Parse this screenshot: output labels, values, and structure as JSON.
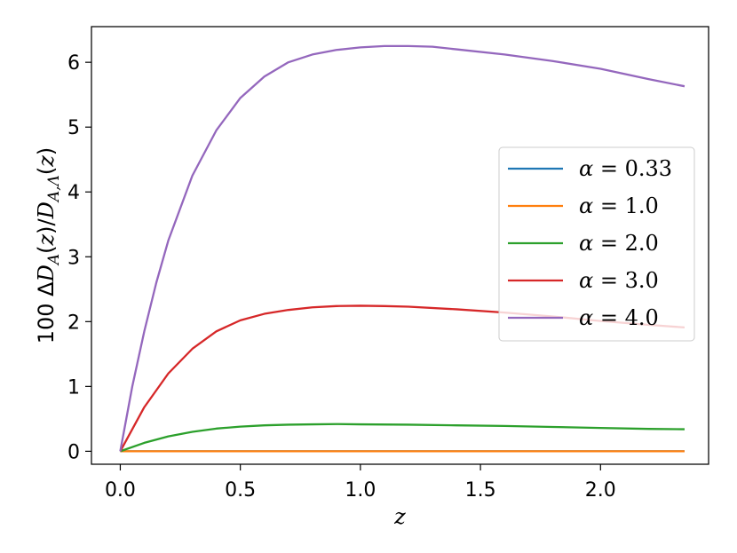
{
  "chart_data": {
    "type": "line",
    "title": "",
    "xlabel": "z",
    "ylabel": "100 ΔD_A(z)/D_A,Λ(z)",
    "xlim": [
      -0.12,
      2.45
    ],
    "ylim": [
      -0.2,
      6.55
    ],
    "xticks": [
      0.0,
      0.5,
      1.0,
      1.5,
      2.0
    ],
    "xtick_labels": [
      "0.0",
      "0.5",
      "1.0",
      "1.5",
      "2.0"
    ],
    "yticks": [
      0,
      1,
      2,
      3,
      4,
      5,
      6
    ],
    "ytick_labels": [
      "0",
      "1",
      "2",
      "3",
      "4",
      "5",
      "6"
    ],
    "grid": false,
    "legend_position": "center-right",
    "series": [
      {
        "name": "α = 0.33",
        "color": "#1f77b4",
        "x": [
          0,
          0.1,
          0.2,
          0.3,
          0.4,
          0.5,
          0.6,
          0.7,
          0.8,
          0.9,
          1.0,
          1.2,
          1.4,
          1.6,
          1.8,
          2.0,
          2.2,
          2.35
        ],
        "y": [
          0,
          0,
          0,
          0,
          0,
          0,
          0,
          0,
          0,
          0,
          0,
          0,
          0,
          0,
          0,
          0,
          0,
          0
        ]
      },
      {
        "name": "α = 1.0",
        "color": "#ff7f0e",
        "x": [
          0,
          0.1,
          0.2,
          0.3,
          0.4,
          0.5,
          0.6,
          0.7,
          0.8,
          0.9,
          1.0,
          1.2,
          1.4,
          1.6,
          1.8,
          2.0,
          2.2,
          2.35
        ],
        "y": [
          0,
          0,
          0,
          0,
          0,
          0,
          0,
          0,
          0,
          0,
          0,
          0,
          0,
          0,
          0,
          0,
          0,
          0
        ]
      },
      {
        "name": "α = 2.0",
        "color": "#2ca02c",
        "x": [
          0,
          0.1,
          0.2,
          0.3,
          0.4,
          0.5,
          0.6,
          0.7,
          0.8,
          0.9,
          1.0,
          1.2,
          1.4,
          1.6,
          1.8,
          2.0,
          2.2,
          2.35
        ],
        "y": [
          0,
          0.13,
          0.23,
          0.3,
          0.35,
          0.38,
          0.4,
          0.41,
          0.415,
          0.42,
          0.415,
          0.41,
          0.4,
          0.39,
          0.375,
          0.36,
          0.345,
          0.34
        ]
      },
      {
        "name": "α = 3.0",
        "color": "#d62728",
        "x": [
          0,
          0.1,
          0.2,
          0.3,
          0.4,
          0.5,
          0.6,
          0.7,
          0.8,
          0.9,
          1.0,
          1.1,
          1.2,
          1.4,
          1.6,
          1.8,
          2.0,
          2.2,
          2.35
        ],
        "y": [
          0,
          0.68,
          1.2,
          1.58,
          1.85,
          2.02,
          2.12,
          2.18,
          2.22,
          2.24,
          2.245,
          2.24,
          2.23,
          2.19,
          2.14,
          2.08,
          2.01,
          1.95,
          1.91
        ]
      },
      {
        "name": "α = 4.0",
        "color": "#9467bd",
        "x": [
          0,
          0.05,
          0.1,
          0.15,
          0.2,
          0.3,
          0.4,
          0.5,
          0.6,
          0.7,
          0.8,
          0.9,
          1.0,
          1.1,
          1.2,
          1.3,
          1.4,
          1.6,
          1.8,
          2.0,
          2.2,
          2.35
        ],
        "y": [
          0,
          1.0,
          1.85,
          2.6,
          3.25,
          4.25,
          4.95,
          5.45,
          5.78,
          6.0,
          6.12,
          6.19,
          6.23,
          6.25,
          6.25,
          6.24,
          6.2,
          6.12,
          6.02,
          5.9,
          5.74,
          5.63
        ]
      }
    ]
  }
}
